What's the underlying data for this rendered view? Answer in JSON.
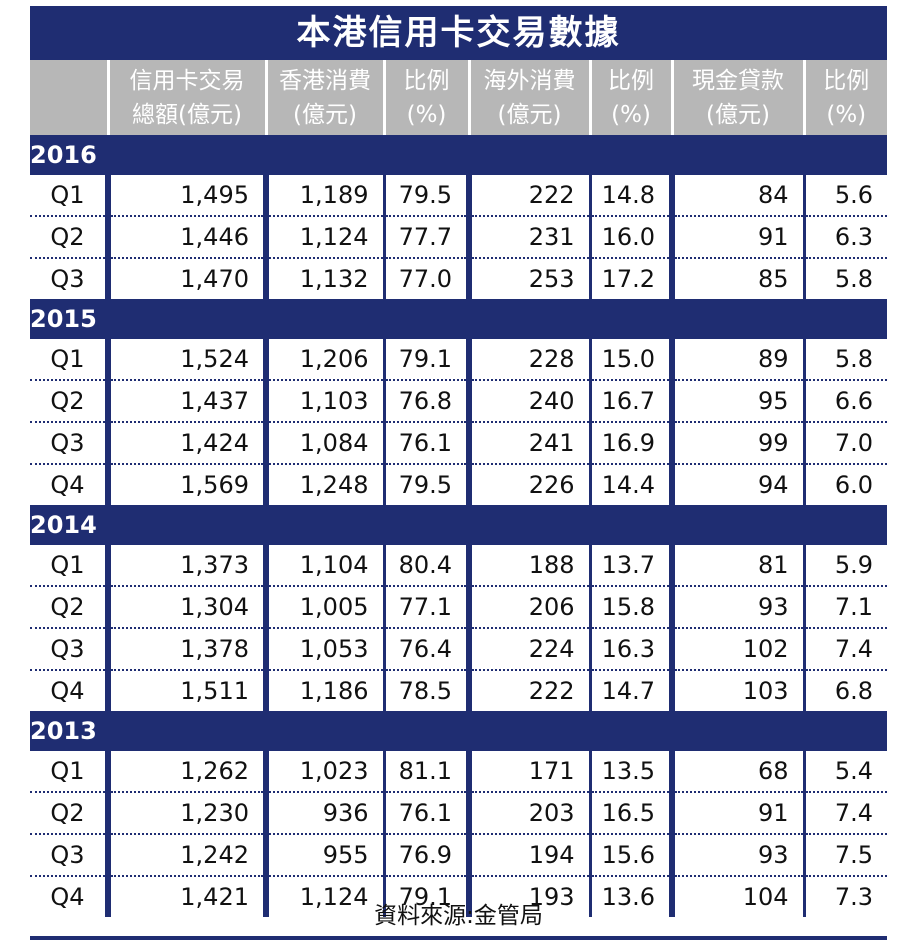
{
  "title": "本港信用卡交易數據",
  "headers": [
    {
      "line1": "",
      "line2": ""
    },
    {
      "line1": "信用卡交易",
      "line2": "總額(億元)"
    },
    {
      "line1": "香港消費",
      "line2": "(億元)"
    },
    {
      "line1": "比例",
      "line2": "(%)"
    },
    {
      "line1": "海外消費",
      "line2": "(億元)"
    },
    {
      "line1": "比例",
      "line2": "(%)"
    },
    {
      "line1": "現金貸款",
      "line2": "(億元)"
    },
    {
      "line1": "比例",
      "line2": "(%)"
    }
  ],
  "groups": [
    {
      "year": "2016",
      "rows": [
        [
          "Q1",
          "1,495",
          "1,189",
          "79.5",
          "222",
          "14.8",
          "84",
          "5.6"
        ],
        [
          "Q2",
          "1,446",
          "1,124",
          "77.7",
          "231",
          "16.0",
          "91",
          "6.3"
        ],
        [
          "Q3",
          "1,470",
          "1,132",
          "77.0",
          "253",
          "17.2",
          "85",
          "5.8"
        ]
      ]
    },
    {
      "year": "2015",
      "rows": [
        [
          "Q1",
          "1,524",
          "1,206",
          "79.1",
          "228",
          "15.0",
          "89",
          "5.8"
        ],
        [
          "Q2",
          "1,437",
          "1,103",
          "76.8",
          "240",
          "16.7",
          "95",
          "6.6"
        ],
        [
          "Q3",
          "1,424",
          "1,084",
          "76.1",
          "241",
          "16.9",
          "99",
          "7.0"
        ],
        [
          "Q4",
          "1,569",
          "1,248",
          "79.5",
          "226",
          "14.4",
          "94",
          "6.0"
        ]
      ]
    },
    {
      "year": "2014",
      "rows": [
        [
          "Q1",
          "1,373",
          "1,104",
          "80.4",
          "188",
          "13.7",
          "81",
          "5.9"
        ],
        [
          "Q2",
          "1,304",
          "1,005",
          "77.1",
          "206",
          "15.8",
          "93",
          "7.1"
        ],
        [
          "Q3",
          "1,378",
          "1,053",
          "76.4",
          "224",
          "16.3",
          "102",
          "7.4"
        ],
        [
          "Q4",
          "1,511",
          "1,186",
          "78.5",
          "222",
          "14.7",
          "103",
          "6.8"
        ]
      ]
    },
    {
      "year": "2013",
      "rows": [
        [
          "Q1",
          "1,262",
          "1,023",
          "81.1",
          "171",
          "13.5",
          "68",
          "5.4"
        ],
        [
          "Q2",
          "1,230",
          "936",
          "76.1",
          "203",
          "16.5",
          "91",
          "7.4"
        ],
        [
          "Q3",
          "1,242",
          "955",
          "76.9",
          "194",
          "15.6",
          "93",
          "7.5"
        ],
        [
          "Q4",
          "1,421",
          "1,124",
          "79.1",
          "193",
          "13.6",
          "104",
          "7.3"
        ]
      ]
    }
  ],
  "source": "資料來源:金管局",
  "colors": {
    "navy": "#1f2d72",
    "header_gray": "#b7b7b7"
  }
}
